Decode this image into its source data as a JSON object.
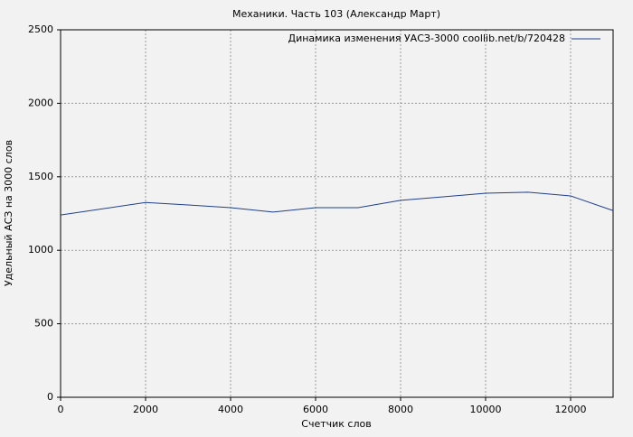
{
  "chart_data": {
    "type": "line",
    "title": "Механики. Часть 103 (Александр Март)",
    "x_label": "Счетчик слов",
    "y_label": "Удельный АСЗ на 3000 слов",
    "x": [
      0,
      2000,
      3000,
      4000,
      5000,
      6000,
      7000,
      8000,
      9000,
      10000,
      11000,
      12000,
      13000
    ],
    "series": [
      {
        "name": "Динамика изменения УАСЗ-3000 coollib.net/b/720428",
        "color": "#1f3f8f",
        "values": [
          1240,
          1325,
          1308,
          1290,
          1260,
          1290,
          1290,
          1340,
          1364,
          1388,
          1395,
          1370,
          1270
        ]
      }
    ],
    "xlim": [
      0,
      13000
    ],
    "xticks": [
      0,
      2000,
      4000,
      6000,
      8000,
      10000,
      12000
    ],
    "ylim": [
      0,
      2500
    ],
    "yticks": [
      0,
      500,
      1000,
      1500,
      2000,
      2500
    ],
    "grid": true,
    "legend": "upper-right"
  }
}
